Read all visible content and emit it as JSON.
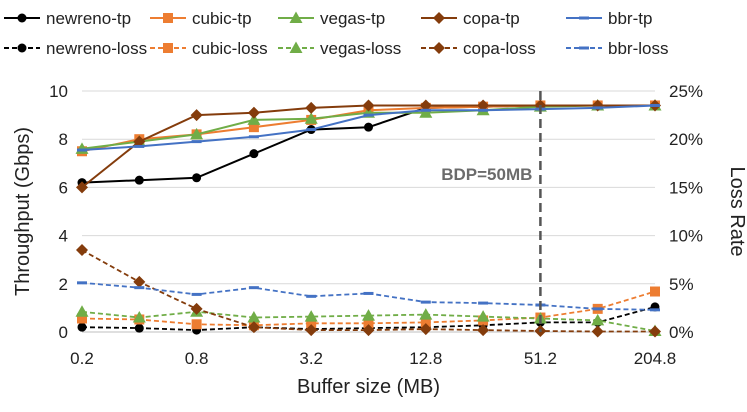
{
  "chart_data": {
    "type": "line",
    "title": "",
    "xlabel": "Buffer size (MB)",
    "ylabel": "Throughput (Gbps)",
    "y2label": "Loss Rate",
    "x": [
      0.2,
      0.4,
      0.8,
      1.6,
      3.2,
      6.4,
      12.8,
      25.6,
      51.2,
      102.4,
      204.8
    ],
    "xticks": [
      "0.2",
      "0.8",
      "3.2",
      "12.8",
      "51.2",
      "204.8"
    ],
    "ylim": [
      0,
      10
    ],
    "yticks": [
      "0",
      "2",
      "4",
      "6",
      "8",
      "10"
    ],
    "y2lim": [
      0,
      25
    ],
    "y2ticks": [
      "0%",
      "5%",
      "10%",
      "15%",
      "20%",
      "25%"
    ],
    "legend_position": "top",
    "annotation": {
      "text": "BDP=50MB",
      "x": 51.2
    },
    "series": [
      {
        "name": "newreno-tp",
        "axis": "left",
        "color": "#000000",
        "dash": false,
        "marker": "circle",
        "values": [
          6.2,
          6.3,
          6.4,
          7.4,
          8.4,
          8.5,
          9.3,
          9.35,
          9.4,
          9.4,
          9.4
        ]
      },
      {
        "name": "cubic-tp",
        "axis": "left",
        "color": "#ED7D31",
        "dash": false,
        "marker": "square",
        "values": [
          7.5,
          8.0,
          8.2,
          8.5,
          8.8,
          9.2,
          9.3,
          9.35,
          9.4,
          9.4,
          9.4
        ]
      },
      {
        "name": "vegas-tp",
        "axis": "left",
        "color": "#70AD47",
        "dash": false,
        "marker": "triangle",
        "values": [
          7.6,
          7.9,
          8.2,
          8.8,
          8.85,
          9.1,
          9.1,
          9.2,
          9.35,
          9.4,
          9.4
        ]
      },
      {
        "name": "copa-tp",
        "axis": "left",
        "color": "#843C0C",
        "dash": false,
        "marker": "diamond",
        "values": [
          6.0,
          7.9,
          9.0,
          9.1,
          9.3,
          9.4,
          9.4,
          9.4,
          9.4,
          9.4,
          9.4
        ]
      },
      {
        "name": "bbr-tp",
        "axis": "left",
        "color": "#4472C4",
        "dash": false,
        "marker": "dash",
        "values": [
          7.55,
          7.7,
          7.9,
          8.1,
          8.4,
          9.0,
          9.2,
          9.2,
          9.25,
          9.3,
          9.4
        ]
      },
      {
        "name": "newreno-loss",
        "axis": "right",
        "color": "#000000",
        "dash": true,
        "marker": "circle",
        "values": [
          0.5,
          0.4,
          0.2,
          0.5,
          0.3,
          0.4,
          0.5,
          0.7,
          1.0,
          1.0,
          2.6
        ]
      },
      {
        "name": "cubic-loss",
        "axis": "right",
        "color": "#ED7D31",
        "dash": true,
        "marker": "square",
        "values": [
          1.4,
          1.3,
          0.8,
          0.7,
          0.9,
          0.9,
          1.0,
          1.2,
          1.5,
          2.4,
          4.2
        ]
      },
      {
        "name": "vegas-loss",
        "axis": "right",
        "color": "#70AD47",
        "dash": true,
        "marker": "triangle",
        "values": [
          2.1,
          1.5,
          2.1,
          1.5,
          1.6,
          1.7,
          1.8,
          1.6,
          1.4,
          1.2,
          0.1
        ]
      },
      {
        "name": "copa-loss",
        "axis": "right",
        "color": "#843C0C",
        "dash": true,
        "marker": "diamond",
        "values": [
          8.5,
          5.2,
          2.4,
          0.5,
          0.2,
          0.2,
          0.3,
          0.2,
          0.1,
          0.05,
          0.05
        ]
      },
      {
        "name": "bbr-loss",
        "axis": "right",
        "color": "#4472C4",
        "dash": true,
        "marker": "dash",
        "values": [
          5.1,
          4.6,
          3.9,
          4.6,
          3.7,
          4.0,
          3.1,
          3.0,
          2.8,
          2.4,
          2.3
        ]
      }
    ]
  }
}
